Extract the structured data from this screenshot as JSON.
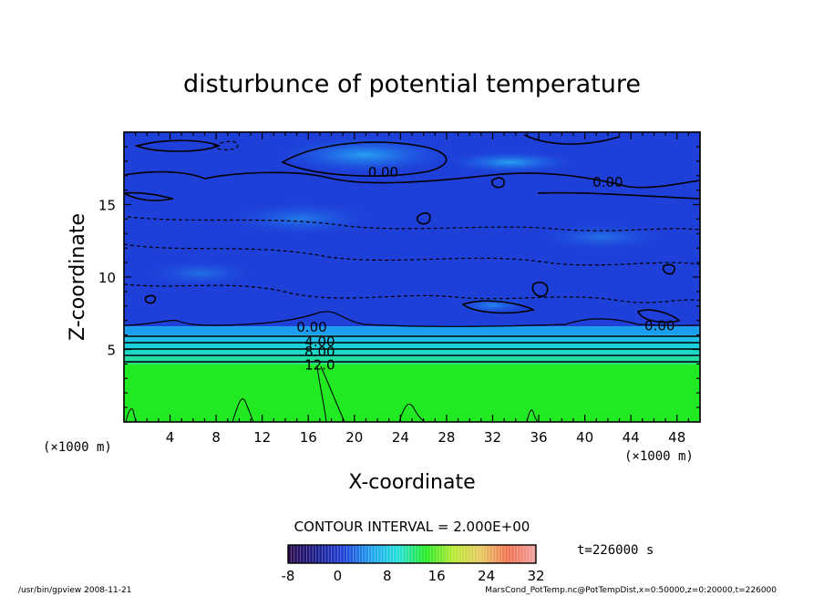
{
  "chart_data": {
    "type": "heatmap",
    "title": "disturbunce of potential temperature",
    "xlabel": "X-coordinate",
    "ylabel": "Z-coordinate",
    "x_unit": "(×1000 m)",
    "y_unit": "(×1000 m)",
    "xlim": [
      0,
      50
    ],
    "ylim": [
      0,
      20
    ],
    "xticks": [
      4,
      8,
      12,
      16,
      20,
      24,
      28,
      32,
      36,
      40,
      44,
      48
    ],
    "yticks": [
      5,
      10,
      15
    ],
    "contour_interval_text": "CONTOUR INTERVAL = 2.000E+00",
    "contour_labels": [
      {
        "text": "0.00",
        "x": 22.5,
        "z": 17.3
      },
      {
        "text": "0.00",
        "x": 42.0,
        "z": 16.6
      },
      {
        "text": "0.00",
        "x": 46.5,
        "z": 6.7
      },
      {
        "text": "0.00",
        "x": 16.3,
        "z": 6.6
      },
      {
        "text": "4.00",
        "x": 17.0,
        "z": 5.6
      },
      {
        "text": "8.00",
        "x": 17.0,
        "z": 4.9
      },
      {
        "text": "12.0",
        "x": 17.0,
        "z": 4.0
      }
    ],
    "layers": [
      {
        "z_from": 0.0,
        "z_to": 4.0,
        "value": 13.5,
        "color": "#22ea22"
      },
      {
        "z_from": 4.0,
        "z_to": 4.5,
        "value": 11.0,
        "color": "#21dca0"
      },
      {
        "z_from": 4.5,
        "z_to": 5.0,
        "value": 9.0,
        "color": "#1ed8c8"
      },
      {
        "z_from": 5.0,
        "z_to": 5.5,
        "value": 7.0,
        "color": "#1ad0dc"
      },
      {
        "z_from": 5.5,
        "z_to": 6.0,
        "value": 5.0,
        "color": "#20c0e8"
      },
      {
        "z_from": 6.0,
        "z_to": 6.6,
        "value": 2.0,
        "color": "#1a9ef0"
      },
      {
        "z_from": 6.6,
        "z_to": 20.0,
        "value": -3.0,
        "color": "#1e3fd8"
      }
    ],
    "colorbar": {
      "min": -8,
      "max": 32,
      "ticks": [
        -8,
        0,
        8,
        16,
        24,
        32
      ],
      "colors": [
        "#2a0a4a",
        "#1b1b8c",
        "#1e3fd8",
        "#1e9ff0",
        "#22e0d8",
        "#22ea22",
        "#b8e830",
        "#e8c860",
        "#f07050",
        "#f0a0a0"
      ]
    },
    "time_text": "t=226000 s",
    "footer_left": "/usr/bin/gpview   2008-11-21",
    "footer_right": "MarsCond_PotTemp.nc@PotTempDist,x=0:50000,z=0:20000,t=226000"
  }
}
